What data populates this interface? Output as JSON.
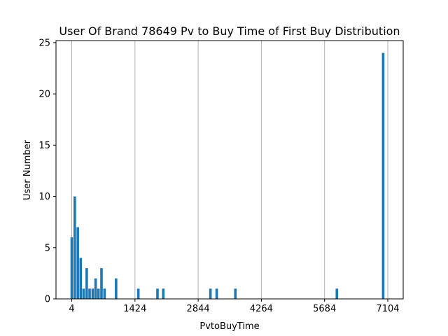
{
  "chart_data": {
    "type": "bar",
    "title": "User Of Brand 78649 Pv to Buy Time of First Buy Distribution",
    "xlabel": "PvtoBuyTime",
    "ylabel": "User Number",
    "xlim": [
      -350,
      7450
    ],
    "ylim": [
      0,
      25.2
    ],
    "x_ticks": [
      4,
      1424,
      2844,
      4264,
      5684,
      7104
    ],
    "x_tick_labels": [
      "4",
      "1424",
      "2844",
      "4264",
      "5684",
      "7104"
    ],
    "y_ticks": [
      0,
      5,
      10,
      15,
      20,
      25
    ],
    "y_tick_labels": [
      "0",
      "5",
      "10",
      "15",
      "20",
      "25"
    ],
    "grid": "vertical",
    "bar_color": "#1f77b4",
    "series": [
      {
        "x": [
          4,
          72,
          140,
          205,
          270,
          340,
          405,
          475,
          540,
          605,
          672,
          740,
          805,
          1000,
          1500,
          1930,
          2060,
          3120,
          3260,
          3680,
          5960,
          7000
        ],
        "values": [
          6,
          10,
          7,
          4,
          1,
          3,
          1,
          1,
          2,
          1,
          3,
          1,
          0,
          2,
          1,
          1,
          1,
          1,
          1,
          1,
          1,
          24
        ]
      }
    ]
  }
}
